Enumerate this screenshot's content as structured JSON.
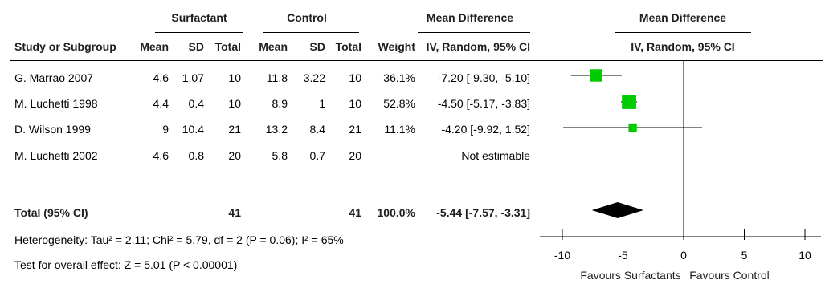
{
  "header": {
    "group1": "Surfactant",
    "group2": "Control",
    "effect_col": "Mean Difference",
    "effect_sub": "IV, Random, 95% CI",
    "plot_title": "Mean Difference",
    "plot_sub": "IV, Random, 95% CI",
    "col_study": "Study or Subgroup",
    "col_mean": "Mean",
    "col_sd": "SD",
    "col_total": "Total",
    "col_weight": "Weight"
  },
  "studies": [
    {
      "name": "G. Marrao 2007",
      "m1": "4.6",
      "sd1": "1.07",
      "n1": "10",
      "m2": "11.8",
      "sd2": "3.22",
      "n2": "10",
      "weight": "36.1%",
      "ci": "-7.20 [-9.30, -5.10]"
    },
    {
      "name": "M. Luchetti 1998",
      "m1": "4.4",
      "sd1": "0.4",
      "n1": "10",
      "m2": "8.9",
      "sd2": "1",
      "n2": "10",
      "weight": "52.8%",
      "ci": "-4.50 [-5.17, -3.83]"
    },
    {
      "name": "D. Wilson 1999",
      "m1": "9",
      "sd1": "10.4",
      "n1": "21",
      "m2": "13.2",
      "sd2": "8.4",
      "n2": "21",
      "weight": "11.1%",
      "ci": "-4.20 [-9.92, 1.52]"
    },
    {
      "name": "M. Luchetti 2002",
      "m1": "4.6",
      "sd1": "0.8",
      "n1": "20",
      "m2": "5.8",
      "sd2": "0.7",
      "n2": "20",
      "weight": "",
      "ci": "Not estimable"
    }
  ],
  "total": {
    "name": "Total (95% CI)",
    "n1": "41",
    "n2": "41",
    "weight": "100.0%",
    "ci": "-5.44 [-7.57, -3.31]"
  },
  "footer": {
    "heterogeneity": "Heterogeneity: Tau² = 2.11; Chi² = 5.79, df = 2 (P = 0.06); I² = 65%",
    "overall": "Test for overall effect: Z = 5.01 (P < 0.00001)"
  },
  "chart_data": {
    "type": "forest",
    "xlim": [
      -10,
      10
    ],
    "ticks": [
      -10,
      -5,
      0,
      5,
      10
    ],
    "tick_labels": [
      "-10",
      "-5",
      "0",
      "5",
      "10"
    ],
    "xlabel_left": "Favours Surfactants",
    "xlabel_right": "Favours Control",
    "studies": [
      {
        "name": "G. Marrao 2007",
        "estimate": -7.2,
        "ci_low": -9.3,
        "ci_high": -5.1,
        "weight": 36.1
      },
      {
        "name": "M. Luchetti 1998",
        "estimate": -4.5,
        "ci_low": -5.17,
        "ci_high": -3.83,
        "weight": 52.8
      },
      {
        "name": "D. Wilson 1999",
        "estimate": -4.2,
        "ci_low": -9.92,
        "ci_high": 1.52,
        "weight": 11.1
      }
    ],
    "pooled": {
      "name": "Total (95% CI)",
      "estimate": -5.44,
      "ci_low": -7.57,
      "ci_high": -3.31
    },
    "colors": {
      "square": "#00cc00",
      "diamond": "#000000",
      "line": "#000000"
    }
  }
}
